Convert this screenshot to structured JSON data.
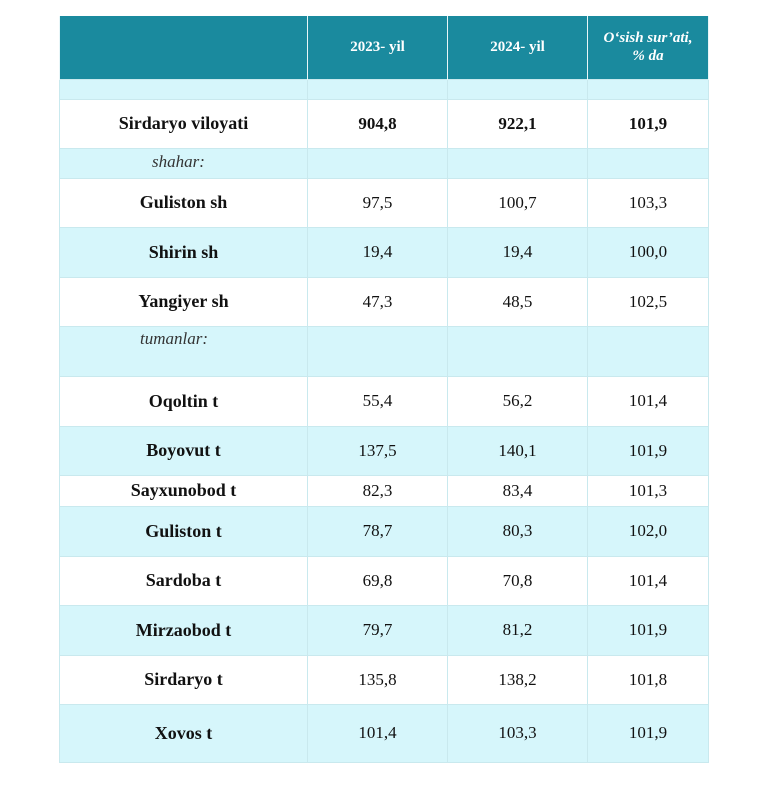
{
  "header": {
    "col_name": "",
    "col_2023": "2023- yil",
    "col_2024": "2024- yil",
    "col_growth_line1": "O‘sish sur’ati,",
    "col_growth_line2": "% da"
  },
  "region": {
    "name": "Sirdaryo viloyati",
    "v2023": "904,8",
    "v2024": "922,1",
    "growth": "101,9"
  },
  "cities_label": "shahar:",
  "cities": [
    {
      "name": "Guliston sh",
      "v2023": "97,5",
      "v2024": "100,7",
      "growth": "103,3"
    },
    {
      "name": "Shirin sh",
      "v2023": "19,4",
      "v2024": "19,4",
      "growth": "100,0"
    },
    {
      "name": "Yangiyer sh",
      "v2023": "47,3",
      "v2024": "48,5",
      "growth": "102,5"
    }
  ],
  "districts_label": "tumanlar:",
  "districts": [
    {
      "name": "Oqoltin t",
      "v2023": "55,4",
      "v2024": "56,2",
      "growth": "101,4"
    },
    {
      "name": "Boyovut t",
      "v2023": "137,5",
      "v2024": "140,1",
      "growth": "101,9"
    },
    {
      "name": "Sayxunobod t",
      "v2023": "82,3",
      "v2024": "83,4",
      "growth": "101,3"
    },
    {
      "name": "Guliston t",
      "v2023": "78,7",
      "v2024": "80,3",
      "growth": "102,0"
    },
    {
      "name": "Sardoba t",
      "v2023": "69,8",
      "v2024": "70,8",
      "growth": "101,4"
    },
    {
      "name": "Mirzaobod t",
      "v2023": "79,7",
      "v2024": "81,2",
      "growth": "101,9"
    },
    {
      "name": "Sirdaryo t",
      "v2023": "135,8",
      "v2024": "138,2",
      "growth": "101,8"
    },
    {
      "name": "Xovos t",
      "v2023": "101,4",
      "v2024": "103,3",
      "growth": "101,9"
    }
  ],
  "colors": {
    "header": "#1a8a9e",
    "stripe": "#d6f6fb",
    "border": "#c9e9ee"
  }
}
